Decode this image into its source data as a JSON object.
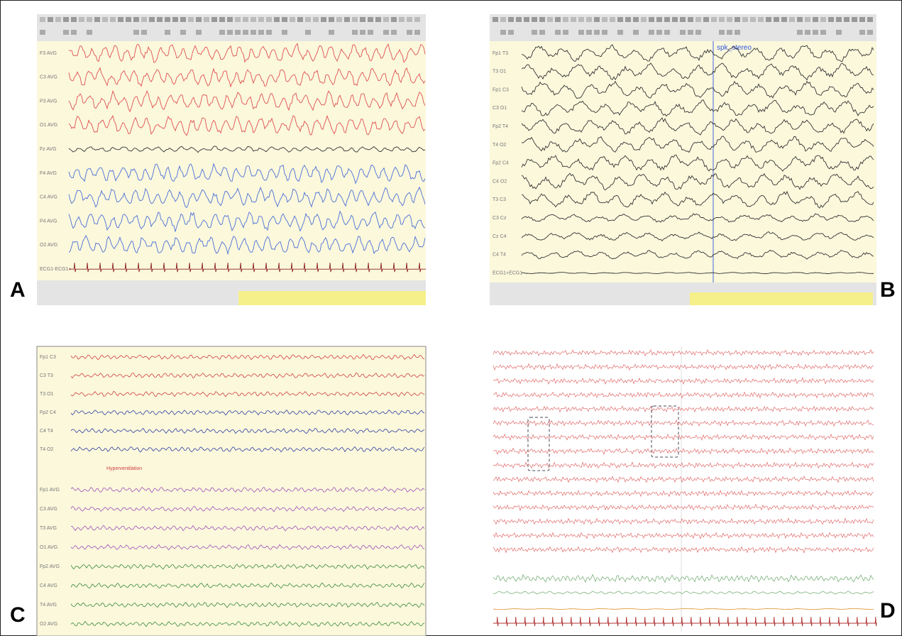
{
  "panels": [
    {
      "label": "A",
      "channels": [
        "F3 AVG",
        "C3 AVG",
        "P3 AVG",
        "O1 AVG",
        "Fz AVG",
        "F4 AVG",
        "C4 AVG",
        "P4 AVG",
        "O2 AVG",
        "ECG1-ECG1+"
      ]
    },
    {
      "label": "B",
      "annotation": "spk_stereo",
      "channels": [
        "Fp1 T3",
        "T3 O1",
        "Fp1 C3",
        "C3 O1",
        "Fp2 T4",
        "T4 O2",
        "Fp2 C4",
        "C4 O2",
        "T3 C3",
        "C3 Cz",
        "Cz C4",
        "C4 T4",
        "ECG1+ECG1-"
      ]
    },
    {
      "label": "C",
      "annotation": "Hyperventilation",
      "channels": [
        "Fp1 C3",
        "C3 T3",
        "T3 O1",
        "Fp2 C4",
        "C4 T4",
        "T4 O2",
        "Fp1 AVG",
        "C3 AVG",
        "T3 AVG",
        "O1 AVG",
        "Fp2 AVG",
        "C4 AVG",
        "T4 AVG",
        "O2 AVG"
      ]
    },
    {
      "label": "D"
    }
  ]
}
